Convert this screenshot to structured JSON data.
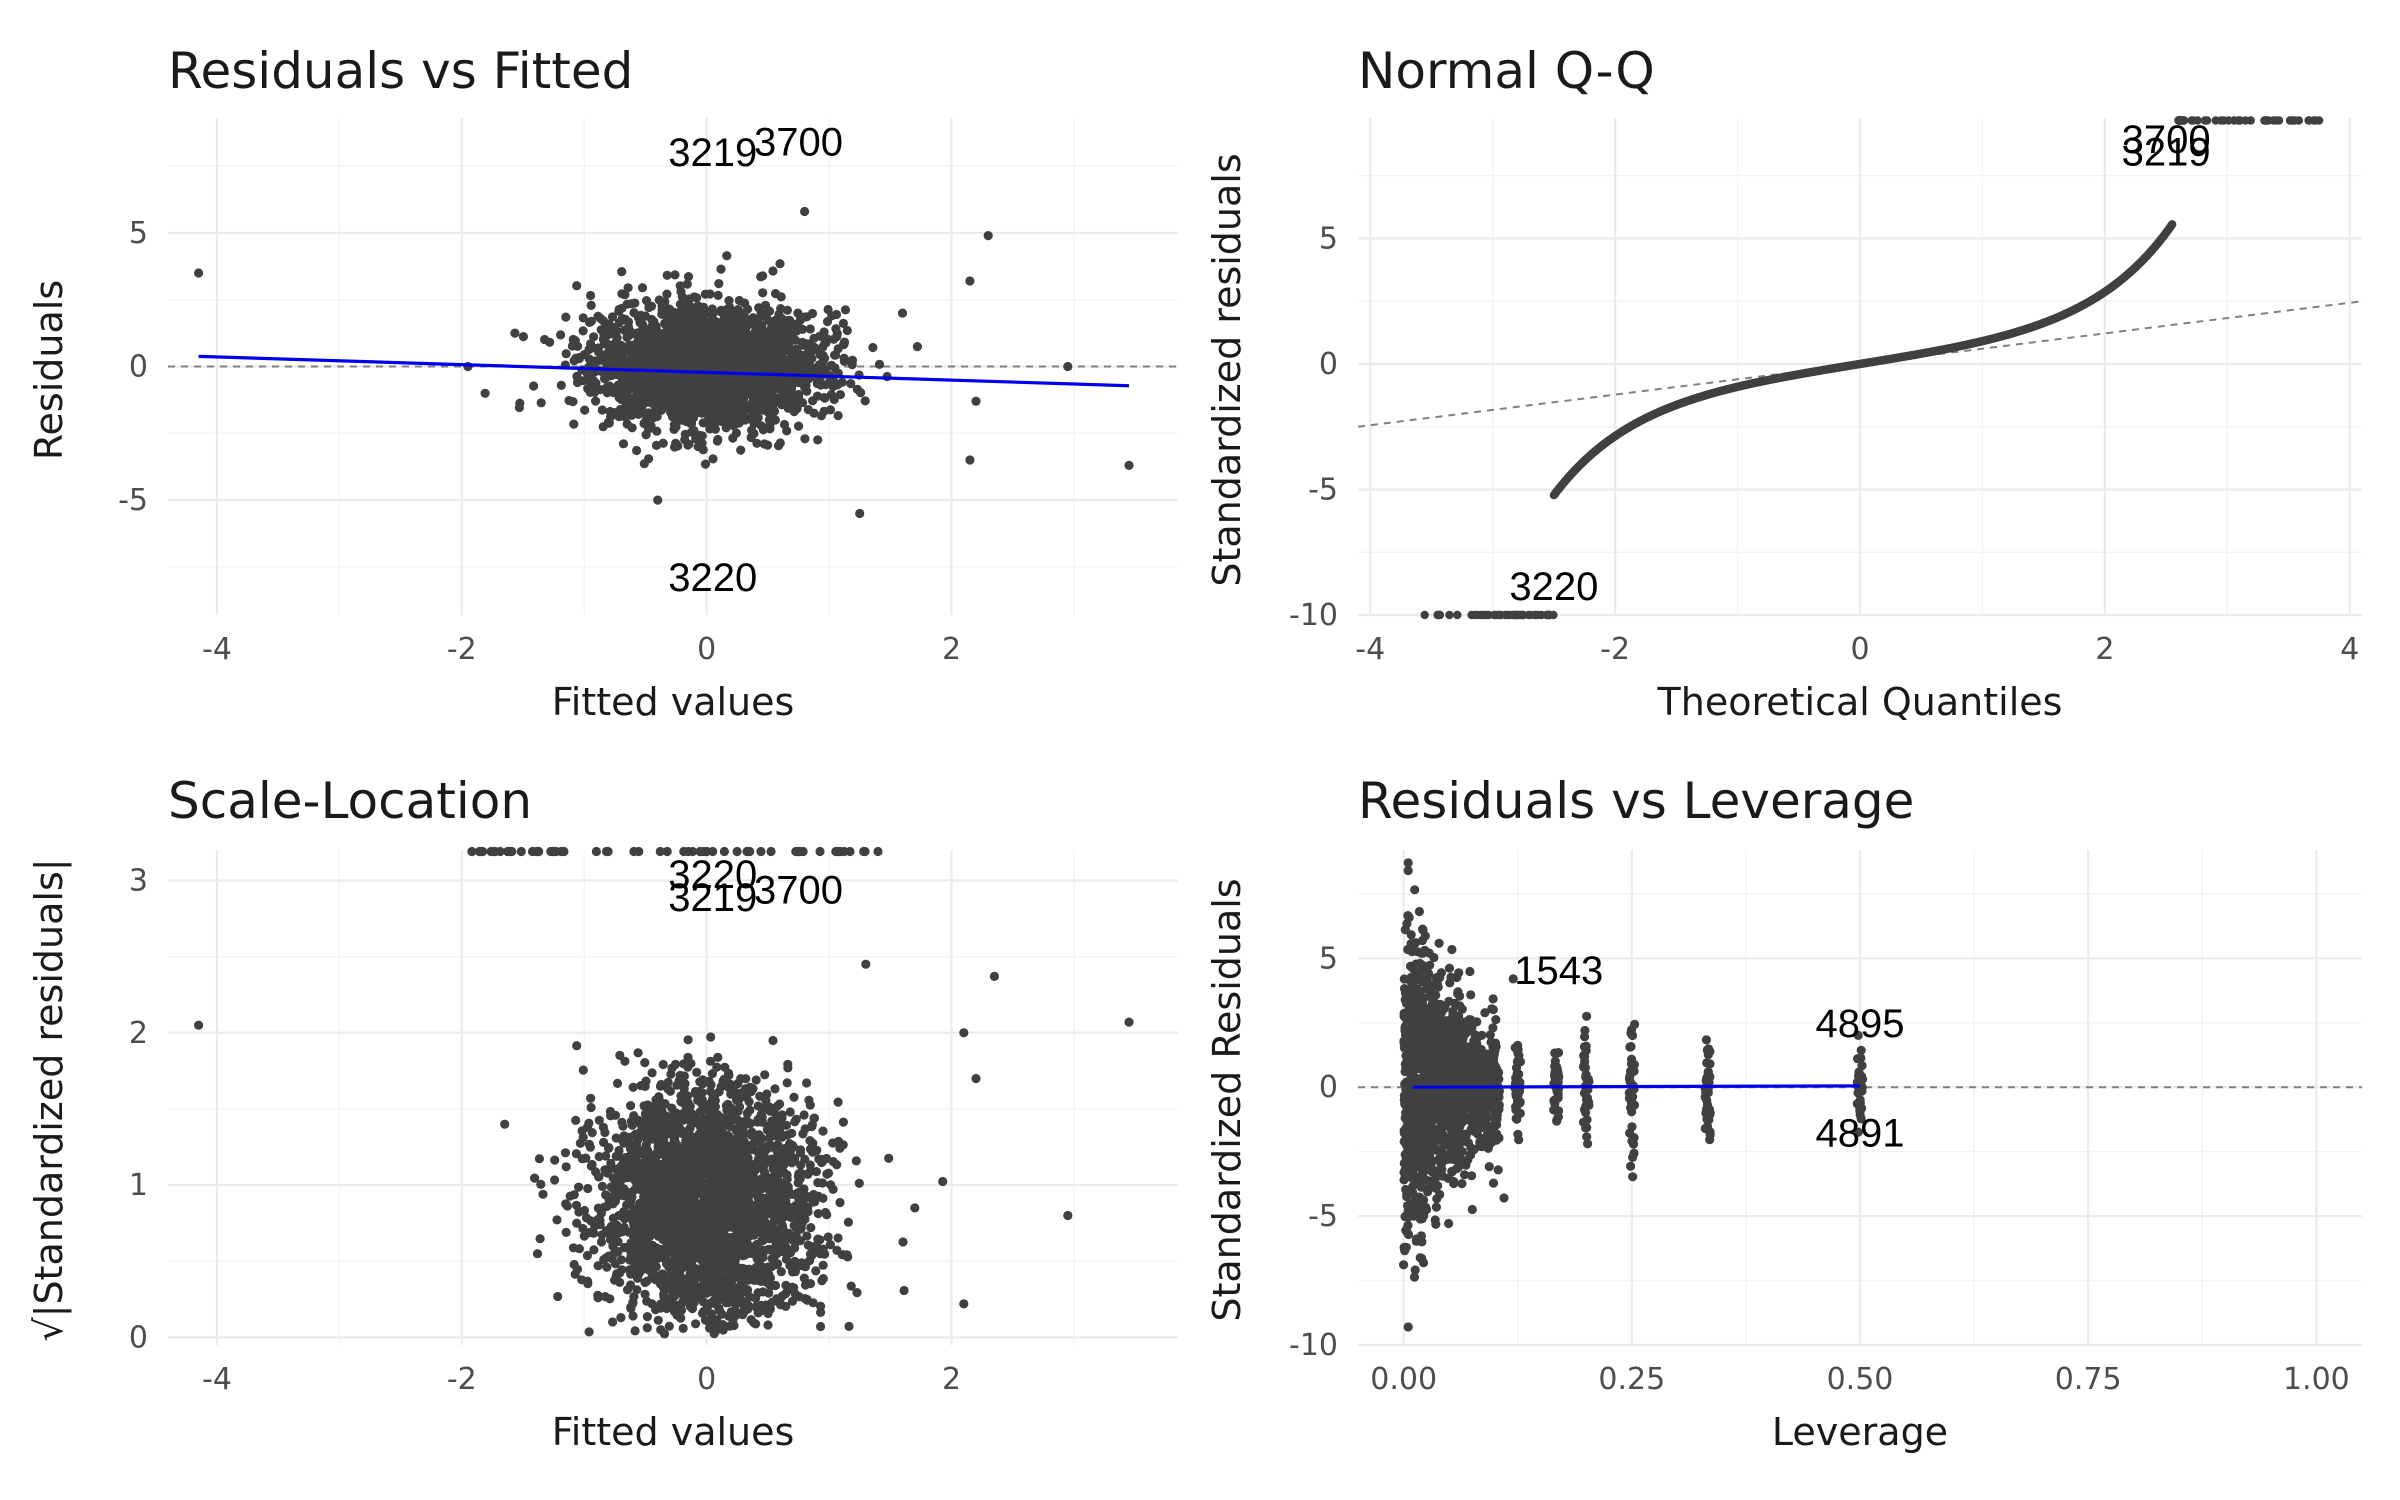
{
  "colors": {
    "points": "#404040",
    "smooth": "#0000ee",
    "ref": "#808080"
  },
  "chart_data": [
    {
      "id": "rvf",
      "type": "scatter",
      "title": "Residuals vs Fitted",
      "xlabel": "Fitted values",
      "ylabel": "Residuals",
      "xlim": [
        -4.4,
        3.85
      ],
      "ylim": [
        -9.3,
        9.3
      ],
      "xticks": [
        -4,
        -2,
        0,
        2
      ],
      "xtick_labels": [
        "-4",
        "-2",
        "0",
        "2"
      ],
      "yticks": [
        -5,
        0,
        5
      ],
      "ytick_labels": [
        "-5",
        "0",
        "5"
      ],
      "grid": true,
      "reference_line": {
        "y": 0,
        "style": "dashed"
      },
      "smooth_line": [
        [
          -4.15,
          0.38
        ],
        [
          3.45,
          -0.72
        ]
      ],
      "cloud": {
        "x_center": 0.0,
        "x_sd": 0.45,
        "y_sd": 1.15,
        "n": 2600
      },
      "outliers": [
        [
          -4.15,
          3.5
        ],
        [
          3.45,
          -3.7
        ],
        [
          2.3,
          4.9
        ],
        [
          2.15,
          3.2
        ],
        [
          2.15,
          -3.5
        ],
        [
          1.25,
          -5.5
        ],
        [
          -0.4,
          -5.0
        ],
        [
          0.8,
          5.8
        ],
        [
          -1.95,
          0.0
        ],
        [
          2.95,
          0.0
        ],
        [
          2.2,
          -1.3
        ],
        [
          1.6,
          2.0
        ]
      ],
      "point_labels": [
        {
          "text": "3219",
          "x": 0.05,
          "y": 7.5
        },
        {
          "text": "3700",
          "x": 0.75,
          "y": 7.9
        },
        {
          "text": "3220",
          "x": 0.05,
          "y": -8.4
        }
      ]
    },
    {
      "id": "qq",
      "type": "scatter",
      "title": "Normal Q-Q",
      "xlabel": "Theoretical Quantiles",
      "ylabel": "Standardized residuals",
      "xlim": [
        -4.1,
        4.1
      ],
      "ylim": [
        -10,
        9.8
      ],
      "xticks": [
        -4,
        -2,
        0,
        2,
        4
      ],
      "xtick_labels": [
        "-4",
        "-2",
        "0",
        "2",
        "4"
      ],
      "yticks": [
        -10,
        -5,
        0,
        5
      ],
      "ytick_labels": [
        "-10",
        "-5",
        "0",
        "5"
      ],
      "grid": true,
      "reference_line": {
        "from": [
          -4.1,
          -2.5
        ],
        "to": [
          4.1,
          2.5
        ],
        "style": "dashed"
      },
      "curve": {
        "q_min": -2.5,
        "q_max": 2.55,
        "n": 900
      },
      "extreme_low": {
        "x_from": -3.75,
        "x_to": -2.5,
        "y": -10
      },
      "extreme_high": {
        "x_from": 2.6,
        "x_to": 3.75,
        "y": 9.7
      },
      "point_labels": [
        {
          "text": "3220",
          "x": -2.5,
          "y": -9.4
        },
        {
          "text": "3700",
          "x": 2.5,
          "y": 8.4
        },
        {
          "text": "3219",
          "x": 2.5,
          "y": 7.9
        }
      ]
    },
    {
      "id": "sl",
      "type": "scatter",
      "title": "Scale-Location",
      "xlabel": "Fitted values",
      "ylabel": "√|Standardized residuals|",
      "xlim": [
        -4.4,
        3.85
      ],
      "ylim": [
        -0.05,
        3.2
      ],
      "xticks": [
        -4,
        -2,
        0,
        2
      ],
      "xtick_labels": [
        "-4",
        "-2",
        "0",
        "2"
      ],
      "yticks": [
        0,
        1,
        2,
        3
      ],
      "ytick_labels": [
        "0",
        "1",
        "2",
        "3"
      ],
      "grid": true,
      "cloud": {
        "x_center": 0.0,
        "x_sd": 0.45,
        "n": 2600
      },
      "top_band": {
        "x_from": -1.95,
        "x_to": 1.4,
        "y": 3.2
      },
      "outliers": [
        [
          -4.15,
          2.05
        ],
        [
          3.45,
          2.07
        ],
        [
          2.95,
          0.8
        ],
        [
          2.35,
          2.37
        ],
        [
          2.1,
          2.0
        ],
        [
          2.2,
          1.7
        ],
        [
          -1.65,
          1.4
        ],
        [
          2.1,
          0.22
        ],
        [
          1.7,
          0.85
        ],
        [
          1.3,
          2.45
        ]
      ],
      "point_labels": [
        {
          "text": "3220",
          "x": 0.05,
          "y": 2.95
        },
        {
          "text": "3219",
          "x": 0.05,
          "y": 2.8
        },
        {
          "text": "3700",
          "x": 0.75,
          "y": 2.85
        }
      ]
    },
    {
      "id": "rvl",
      "type": "scatter",
      "title": "Residuals vs Leverage",
      "xlabel": "Leverage",
      "ylabel": "Standardized Residuals",
      "xlim": [
        -0.05,
        1.05
      ],
      "ylim": [
        -10,
        9.2
      ],
      "xticks": [
        0,
        0.25,
        0.5,
        0.75,
        1
      ],
      "xtick_labels": [
        "0.00",
        "0.25",
        "0.50",
        "0.75",
        "1.00"
      ],
      "yticks": [
        -10,
        -5,
        0,
        5
      ],
      "ytick_labels": [
        "-10",
        "-5",
        "0",
        "5"
      ],
      "grid": true,
      "reference_line": {
        "y": 0,
        "style": "dashed"
      },
      "smooth_line": [
        [
          0.01,
          0.0
        ],
        [
          0.5,
          0.05
        ]
      ],
      "leverage_columns": [
        {
          "x": 0.0,
          "spread": 5.0,
          "n": 500
        },
        {
          "x": 0.02,
          "spread": 4.0,
          "n": 400
        },
        {
          "x": 0.04,
          "spread": 3.2,
          "n": 300
        },
        {
          "x": 0.06,
          "spread": 2.6,
          "n": 200
        },
        {
          "x": 0.083,
          "spread": 2.2,
          "n": 120
        },
        {
          "x": 0.1,
          "spread": 2.0,
          "n": 90
        },
        {
          "x": 0.125,
          "spread": 1.6,
          "n": 50
        },
        {
          "x": 0.167,
          "spread": 1.6,
          "n": 40
        },
        {
          "x": 0.2,
          "spread": 1.9,
          "n": 40
        },
        {
          "x": 0.25,
          "spread": 2.1,
          "n": 40
        },
        {
          "x": 0.333,
          "spread": 2.1,
          "n": 35
        },
        {
          "x": 0.5,
          "spread": 1.5,
          "n": 30
        }
      ],
      "outliers": [
        [
          0.005,
          8.7
        ],
        [
          0.005,
          8.4
        ],
        [
          0.005,
          -9.3
        ],
        [
          0.12,
          4.2
        ],
        [
          0.11,
          -4.3
        ],
        [
          0.02,
          -6.0
        ]
      ],
      "point_labels": [
        {
          "text": "1543",
          "x": 0.17,
          "y": 4.0
        },
        {
          "text": "4895",
          "x": 0.5,
          "y": 1.95
        },
        {
          "text": "4891",
          "x": 0.5,
          "y": -2.3
        }
      ]
    }
  ]
}
